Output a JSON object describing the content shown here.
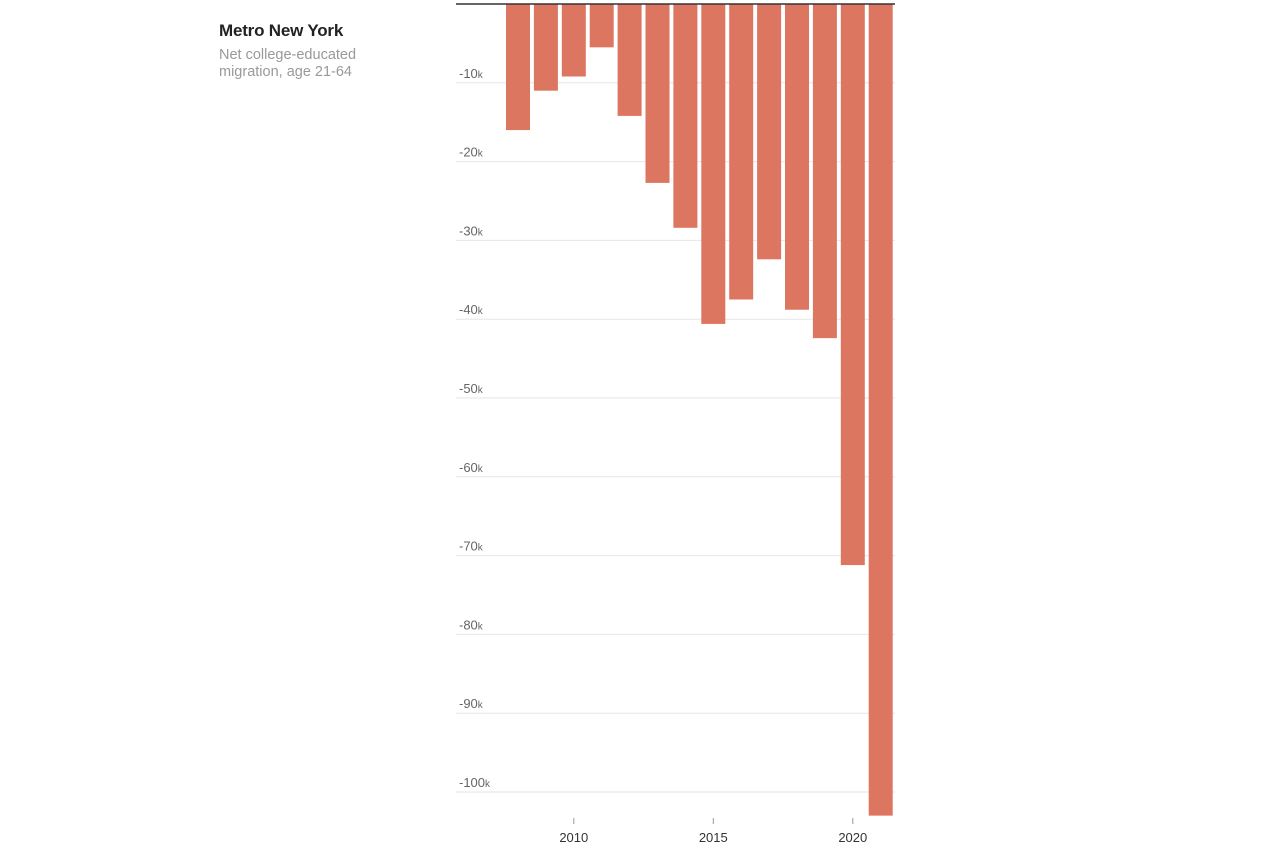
{
  "chart_data": {
    "type": "bar",
    "title": "Metro New York",
    "subtitle": "Net college-educated migration, age 21-64",
    "x": [
      2008,
      2009,
      2010,
      2011,
      2012,
      2013,
      2014,
      2015,
      2016,
      2017,
      2018,
      2019,
      2020,
      2021
    ],
    "values": [
      -16000,
      -11000,
      -9200,
      -5500,
      -14200,
      -22700,
      -28400,
      -40600,
      -37500,
      -32400,
      -38800,
      -42400,
      -71200,
      -103000
    ],
    "ylim": [
      -103000,
      0
    ],
    "y_ticks": [
      -10000,
      -20000,
      -30000,
      -40000,
      -50000,
      -60000,
      -70000,
      -80000,
      -90000,
      -100000
    ],
    "y_tick_labels": [
      {
        "num": "-10",
        "unit": "k"
      },
      {
        "num": "-20",
        "unit": "k"
      },
      {
        "num": "-30",
        "unit": "k"
      },
      {
        "num": "-40",
        "unit": "k"
      },
      {
        "num": "-50",
        "unit": "k"
      },
      {
        "num": "-60",
        "unit": "k"
      },
      {
        "num": "-70",
        "unit": "k"
      },
      {
        "num": "-80",
        "unit": "k"
      },
      {
        "num": "-90",
        "unit": "k"
      },
      {
        "num": "-100",
        "unit": "k"
      }
    ],
    "x_ticks": [
      2010,
      2015,
      2020
    ],
    "bar_color": "#dd7661",
    "grid": true,
    "xlabel": "",
    "ylabel": ""
  }
}
